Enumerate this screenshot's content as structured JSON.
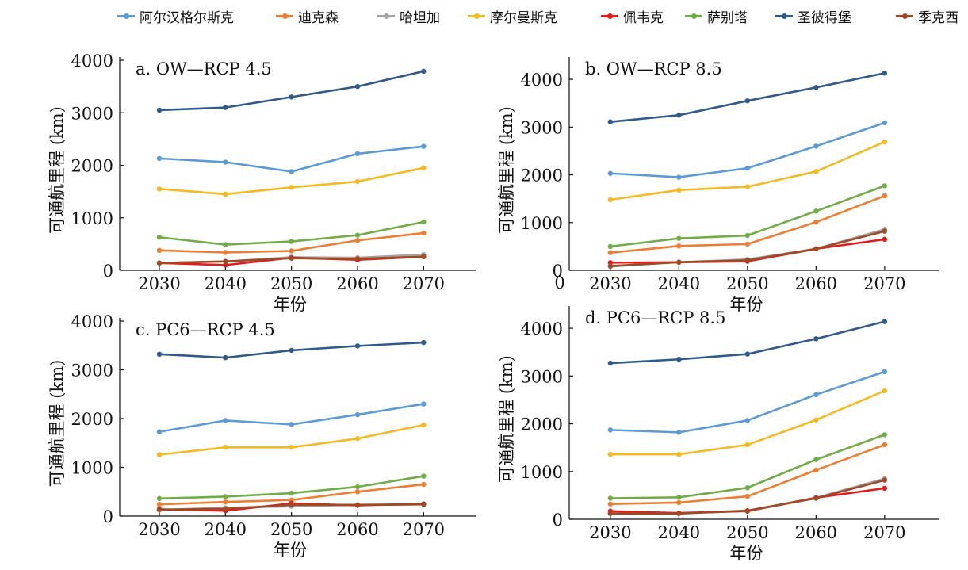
{
  "legend": [
    {
      "name": "阿尔汉格尔斯克",
      "color": "#5b9bd5"
    },
    {
      "name": "迪克森",
      "color": "#ed7d31"
    },
    {
      "name": "哈坦加",
      "color": "#a5a5a5"
    },
    {
      "name": "摩尔曼斯克",
      "color": "#f5b921"
    },
    {
      "name": "佩韦克",
      "color": "#e41a1c"
    },
    {
      "name": "萨别塔",
      "color": "#70ad47"
    },
    {
      "name": "圣彼得堡",
      "color": "#2e5b8c"
    },
    {
      "name": "季克西",
      "color": "#9e4a25"
    }
  ],
  "chart_data": [
    {
      "type": "line",
      "title": "a. OW—RCP 4.5",
      "xlabel": "年份",
      "ylabel": "可通航里程 (km)",
      "x": [
        2030,
        2040,
        2050,
        2060,
        2070
      ],
      "xlim": [
        2024,
        2078
      ],
      "ylim": [
        0,
        4000
      ],
      "yticks": [
        0,
        1000,
        2000,
        3000,
        4000
      ],
      "series": [
        {
          "name": "阿尔汉格尔斯克",
          "values": [
            2130,
            2060,
            1880,
            2220,
            2360
          ]
        },
        {
          "name": "迪克森",
          "values": [
            380,
            340,
            370,
            570,
            710
          ]
        },
        {
          "name": "哈坦加",
          "values": [
            140,
            170,
            250,
            240,
            300
          ]
        },
        {
          "name": "摩尔曼斯克",
          "values": [
            1550,
            1450,
            1580,
            1690,
            1950
          ]
        },
        {
          "name": "佩韦克",
          "values": [
            140,
            100,
            240,
            200,
            260
          ]
        },
        {
          "name": "萨别塔",
          "values": [
            630,
            490,
            550,
            670,
            920
          ]
        },
        {
          "name": "圣彼得堡",
          "values": [
            3050,
            3100,
            3300,
            3500,
            3790
          ]
        },
        {
          "name": "季克西",
          "values": [
            140,
            170,
            230,
            220,
            260
          ]
        }
      ]
    },
    {
      "type": "line",
      "title": "b. OW—RCP 8.5",
      "xlabel": "年份",
      "ylabel": "可通航里程 (km)",
      "x": [
        2030,
        2040,
        2050,
        2060,
        2070
      ],
      "xlim": [
        2024,
        2078
      ],
      "ylim": [
        0,
        4400
      ],
      "yticks": [
        0,
        1000,
        2000,
        3000,
        4000
      ],
      "series": [
        {
          "name": "阿尔汉格尔斯克",
          "values": [
            2030,
            1950,
            2140,
            2600,
            3090
          ]
        },
        {
          "name": "迪克森",
          "values": [
            370,
            510,
            550,
            1010,
            1560
          ]
        },
        {
          "name": "哈坦加",
          "values": [
            80,
            170,
            230,
            450,
            860
          ]
        },
        {
          "name": "摩尔曼斯克",
          "values": [
            1480,
            1680,
            1750,
            2070,
            2690
          ]
        },
        {
          "name": "佩韦克",
          "values": [
            160,
            170,
            190,
            450,
            650
          ]
        },
        {
          "name": "萨别塔",
          "values": [
            500,
            670,
            730,
            1240,
            1770
          ]
        },
        {
          "name": "圣彼得堡",
          "values": [
            3110,
            3250,
            3550,
            3830,
            4130
          ]
        },
        {
          "name": "季克西",
          "values": [
            90,
            170,
            210,
            450,
            820
          ]
        }
      ]
    },
    {
      "type": "line",
      "title": "c. PC6—RCP 4.5",
      "xlabel": "年份",
      "ylabel": "可通航里程 (km)",
      "x": [
        2030,
        2040,
        2050,
        2060,
        2070
      ],
      "xlim": [
        2024,
        2078
      ],
      "ylim": [
        0,
        4000
      ],
      "yticks": [
        0,
        1000,
        2000,
        3000,
        4000
      ],
      "series": [
        {
          "name": "阿尔汉格尔斯克",
          "values": [
            1730,
            1960,
            1880,
            2080,
            2300
          ]
        },
        {
          "name": "迪克森",
          "values": [
            240,
            290,
            330,
            500,
            650
          ]
        },
        {
          "name": "哈坦加",
          "values": [
            130,
            170,
            200,
            230,
            240
          ]
        },
        {
          "name": "摩尔曼斯克",
          "values": [
            1260,
            1410,
            1410,
            1590,
            1870
          ]
        },
        {
          "name": "佩韦克",
          "values": [
            140,
            110,
            260,
            220,
            250
          ]
        },
        {
          "name": "萨别塔",
          "values": [
            360,
            400,
            470,
            600,
            820
          ]
        },
        {
          "name": "圣彼得堡",
          "values": [
            3320,
            3250,
            3400,
            3490,
            3560
          ]
        },
        {
          "name": "季克西",
          "values": [
            130,
            150,
            230,
            230,
            240
          ]
        }
      ]
    },
    {
      "type": "line",
      "title": "d. PC6—RCP 8.5",
      "xlabel": "年份",
      "ylabel": "可通航里程 (km)",
      "x": [
        2030,
        2040,
        2050,
        2060,
        2070
      ],
      "xlim": [
        2024,
        2078
      ],
      "ylim": [
        0,
        4400
      ],
      "yticks": [
        0,
        1000,
        2000,
        3000,
        4000
      ],
      "series": [
        {
          "name": "阿尔汉格尔斯克",
          "values": [
            1870,
            1820,
            2070,
            2610,
            3090
          ]
        },
        {
          "name": "迪克森",
          "values": [
            320,
            350,
            480,
            1030,
            1560
          ]
        },
        {
          "name": "哈坦加",
          "values": [
            130,
            130,
            180,
            450,
            850
          ]
        },
        {
          "name": "摩尔曼斯克",
          "values": [
            1360,
            1360,
            1560,
            2080,
            2690
          ]
        },
        {
          "name": "佩韦克",
          "values": [
            170,
            130,
            170,
            450,
            650
          ]
        },
        {
          "name": "萨别塔",
          "values": [
            440,
            460,
            660,
            1250,
            1770
          ]
        },
        {
          "name": "圣彼得堡",
          "values": [
            3270,
            3350,
            3460,
            3780,
            4140
          ]
        },
        {
          "name": "季克西",
          "values": [
            120,
            120,
            180,
            440,
            820
          ]
        }
      ]
    }
  ],
  "extra_axis_label": "0"
}
